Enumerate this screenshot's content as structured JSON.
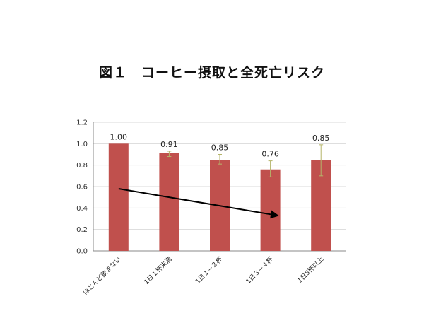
{
  "chart_data": {
    "type": "bar",
    "title": "図１　コーヒー摂取と全死亡リスク",
    "categories": [
      "ほとんど飲まない",
      "1日１杯未満",
      "1日１−２杯",
      "1日３−４杯",
      "1日5杯以上"
    ],
    "values": [
      1.0,
      0.91,
      0.85,
      0.76,
      0.85
    ],
    "data_labels": [
      "1.00",
      "0.91",
      "0.85",
      "0.76",
      "0.85"
    ],
    "error_bars": [
      [
        1.0,
        1.0
      ],
      [
        0.88,
        0.93
      ],
      [
        0.81,
        0.9
      ],
      [
        0.69,
        0.84
      ],
      [
        0.7,
        0.99
      ]
    ],
    "ylim": [
      0,
      1.2
    ],
    "yticks": [
      "0.0",
      "0.2",
      "0.4",
      "0.6",
      "0.8",
      "1.0",
      "1.2"
    ],
    "trend_arrow": {
      "from": {
        "category": 0,
        "y": 0.58
      },
      "to": {
        "category": 3,
        "y": 0.33
      }
    },
    "grid": true,
    "colors": {
      "bar": "#c0504d",
      "error": "#b5b56a",
      "grid": "#d9d9d9",
      "arrow": "#000000"
    }
  }
}
